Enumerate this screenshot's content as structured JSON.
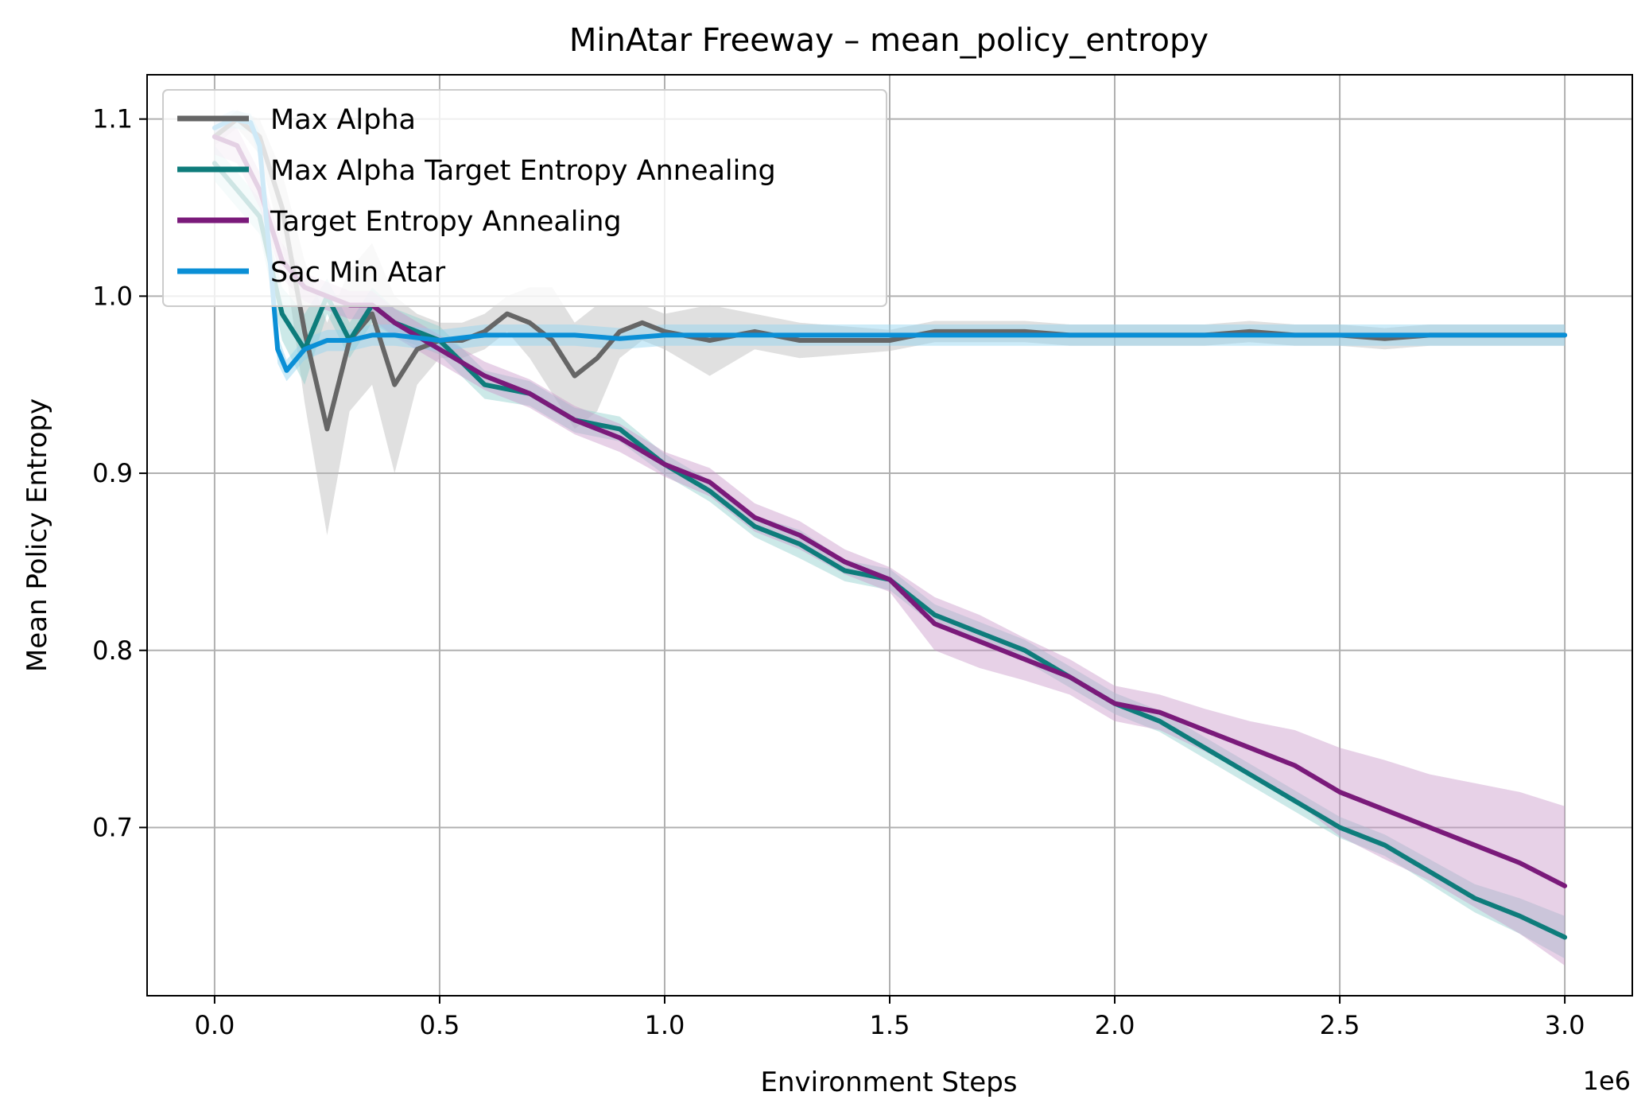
{
  "chart_data": {
    "type": "line",
    "title": "MinAtar Freeway – mean_policy_entropy",
    "xlabel": "Environment Steps",
    "ylabel": "Mean Policy Entropy",
    "x_scale_note": "1e6",
    "xlim": [
      -0.15,
      3.15
    ],
    "ylim": [
      0.605,
      1.125
    ],
    "x_ticks": [
      0.0,
      0.5,
      1.0,
      1.5,
      2.0,
      2.5,
      3.0
    ],
    "x_tick_labels": [
      "0.0",
      "0.5",
      "1.0",
      "1.5",
      "2.0",
      "2.5",
      "3.0"
    ],
    "y_ticks": [
      0.7,
      0.8,
      0.9,
      1.0,
      1.1
    ],
    "y_tick_labels": [
      "0.7",
      "0.8",
      "0.9",
      "1.0",
      "1.1"
    ],
    "grid": true,
    "legend_position": "top-left",
    "series": [
      {
        "name": "Max Alpha",
        "color": "#666666",
        "band_color": "#bbbbbb",
        "x": [
          0.0,
          0.05,
          0.1,
          0.15,
          0.2,
          0.25,
          0.3,
          0.35,
          0.4,
          0.45,
          0.5,
          0.55,
          0.6,
          0.65,
          0.7,
          0.75,
          0.8,
          0.85,
          0.9,
          0.95,
          1.0,
          1.1,
          1.2,
          1.3,
          1.4,
          1.5,
          1.6,
          1.7,
          1.8,
          1.9,
          2.0,
          2.1,
          2.2,
          2.3,
          2.4,
          2.5,
          2.6,
          2.7,
          2.8,
          2.9,
          3.0
        ],
        "values": [
          1.09,
          1.1,
          1.09,
          1.05,
          0.98,
          0.925,
          0.975,
          0.99,
          0.95,
          0.97,
          0.975,
          0.975,
          0.98,
          0.99,
          0.985,
          0.975,
          0.955,
          0.965,
          0.98,
          0.985,
          0.98,
          0.975,
          0.98,
          0.975,
          0.975,
          0.975,
          0.98,
          0.98,
          0.98,
          0.978,
          0.978,
          0.978,
          0.978,
          0.98,
          0.978,
          0.978,
          0.976,
          0.978,
          0.978,
          0.978,
          0.978
        ],
        "band_half_width": [
          0.005,
          0.005,
          0.01,
          0.02,
          0.04,
          0.06,
          0.04,
          0.04,
          0.05,
          0.02,
          0.01,
          0.01,
          0.01,
          0.01,
          0.02,
          0.03,
          0.03,
          0.03,
          0.015,
          0.01,
          0.01,
          0.02,
          0.01,
          0.01,
          0.008,
          0.006,
          0.006,
          0.006,
          0.006,
          0.006,
          0.006,
          0.006,
          0.006,
          0.006,
          0.006,
          0.006,
          0.006,
          0.006,
          0.006,
          0.006,
          0.006
        ]
      },
      {
        "name": "Max Alpha Target Entropy Annealing",
        "color": "#0e7c7b",
        "band_color": "#8fcfcb",
        "x": [
          0.0,
          0.05,
          0.1,
          0.15,
          0.2,
          0.25,
          0.3,
          0.35,
          0.4,
          0.5,
          0.6,
          0.7,
          0.8,
          0.9,
          1.0,
          1.1,
          1.2,
          1.3,
          1.4,
          1.5,
          1.6,
          1.7,
          1.8,
          1.9,
          2.0,
          2.1,
          2.2,
          2.3,
          2.4,
          2.5,
          2.6,
          2.7,
          2.8,
          2.9,
          3.0
        ],
        "values": [
          1.075,
          1.06,
          1.045,
          0.99,
          0.97,
          1.0,
          0.975,
          0.995,
          0.985,
          0.975,
          0.95,
          0.945,
          0.93,
          0.925,
          0.905,
          0.89,
          0.87,
          0.86,
          0.845,
          0.84,
          0.82,
          0.81,
          0.8,
          0.785,
          0.77,
          0.76,
          0.745,
          0.73,
          0.715,
          0.7,
          0.69,
          0.675,
          0.66,
          0.65,
          0.638
        ],
        "band_half_width": [
          0.01,
          0.01,
          0.01,
          0.015,
          0.02,
          0.01,
          0.01,
          0.01,
          0.008,
          0.008,
          0.008,
          0.007,
          0.007,
          0.007,
          0.006,
          0.006,
          0.006,
          0.008,
          0.006,
          0.006,
          0.006,
          0.006,
          0.006,
          0.006,
          0.006,
          0.006,
          0.006,
          0.006,
          0.006,
          0.006,
          0.006,
          0.007,
          0.008,
          0.01,
          0.012
        ]
      },
      {
        "name": "Target Entropy Annealing",
        "color": "#7a1a7a",
        "band_color": "#c99ac9",
        "x": [
          0.0,
          0.05,
          0.1,
          0.15,
          0.2,
          0.25,
          0.3,
          0.35,
          0.4,
          0.5,
          0.6,
          0.7,
          0.8,
          0.9,
          1.0,
          1.1,
          1.2,
          1.3,
          1.4,
          1.5,
          1.6,
          1.7,
          1.8,
          1.9,
          2.0,
          2.1,
          2.2,
          2.3,
          2.4,
          2.5,
          2.6,
          2.7,
          2.8,
          2.9,
          3.0
        ],
        "values": [
          1.09,
          1.085,
          1.06,
          1.02,
          1.005,
          1.0,
          0.995,
          0.995,
          0.985,
          0.97,
          0.955,
          0.945,
          0.93,
          0.92,
          0.905,
          0.895,
          0.875,
          0.865,
          0.85,
          0.84,
          0.815,
          0.805,
          0.795,
          0.785,
          0.77,
          0.765,
          0.755,
          0.745,
          0.735,
          0.72,
          0.71,
          0.7,
          0.69,
          0.68,
          0.667
        ],
        "band_half_width": [
          0.01,
          0.01,
          0.01,
          0.01,
          0.008,
          0.008,
          0.008,
          0.008,
          0.008,
          0.008,
          0.008,
          0.008,
          0.008,
          0.008,
          0.007,
          0.008,
          0.008,
          0.008,
          0.007,
          0.007,
          0.015,
          0.015,
          0.012,
          0.01,
          0.01,
          0.01,
          0.012,
          0.015,
          0.02,
          0.025,
          0.028,
          0.03,
          0.035,
          0.04,
          0.045
        ]
      },
      {
        "name": "Sac Min Atar",
        "color": "#0a8fd6",
        "band_color": "#8ed2ef",
        "x": [
          0.0,
          0.04,
          0.08,
          0.1,
          0.12,
          0.14,
          0.16,
          0.2,
          0.25,
          0.3,
          0.35,
          0.4,
          0.5,
          0.6,
          0.7,
          0.8,
          0.9,
          1.0,
          1.1,
          1.2,
          1.3,
          1.4,
          1.5,
          1.6,
          1.7,
          1.8,
          1.9,
          2.0,
          2.1,
          2.2,
          2.3,
          2.4,
          2.5,
          2.6,
          2.7,
          2.8,
          2.9,
          3.0
        ],
        "values": [
          1.095,
          1.1,
          1.098,
          1.085,
          1.03,
          0.97,
          0.958,
          0.97,
          0.975,
          0.975,
          0.978,
          0.978,
          0.975,
          0.978,
          0.978,
          0.978,
          0.976,
          0.978,
          0.978,
          0.978,
          0.978,
          0.978,
          0.978,
          0.978,
          0.978,
          0.978,
          0.978,
          0.978,
          0.978,
          0.978,
          0.978,
          0.978,
          0.978,
          0.978,
          0.978,
          0.978,
          0.978,
          0.978
        ],
        "band_half_width": [
          0.005,
          0.005,
          0.005,
          0.008,
          0.01,
          0.008,
          0.006,
          0.006,
          0.006,
          0.006,
          0.006,
          0.006,
          0.006,
          0.006,
          0.006,
          0.006,
          0.006,
          0.006,
          0.006,
          0.006,
          0.006,
          0.006,
          0.006,
          0.006,
          0.006,
          0.006,
          0.006,
          0.006,
          0.006,
          0.006,
          0.006,
          0.006,
          0.006,
          0.006,
          0.006,
          0.006,
          0.006,
          0.006
        ]
      }
    ]
  }
}
